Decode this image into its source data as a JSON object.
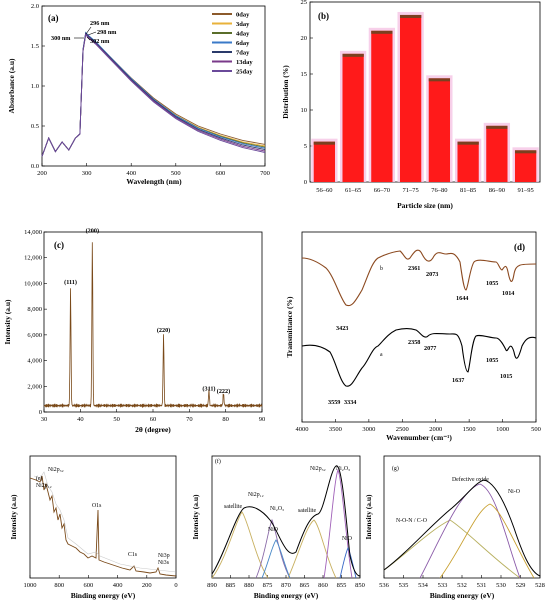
{
  "chart_data": [
    {
      "panel": "(a)",
      "type": "line",
      "xlabel": "Wavelength (nm)",
      "ylabel": "Absorbance (a.u)",
      "xlim": [
        200,
        700
      ],
      "ylim": [
        0,
        2.0
      ],
      "xticks": [
        200,
        300,
        400,
        500,
        600,
        700
      ],
      "yticks": [
        "0.0",
        "0.5",
        "1.0",
        "1.5",
        "2.0"
      ],
      "annotations": [
        "300 nm",
        "296 nm",
        "298 nm",
        "302 nm"
      ],
      "annotation_x": [
        300,
        296,
        298,
        302
      ],
      "legend": "top-right",
      "series": [
        {
          "name": "0day",
          "color": "#8c5a2b",
          "peak": 1.66
        },
        {
          "name": "3day",
          "color": "#e8b23a",
          "peak": 1.64
        },
        {
          "name": "4day",
          "color": "#5a6e2a",
          "peak": 1.65
        },
        {
          "name": "6day",
          "color": "#3a7ac8",
          "peak": 1.67
        },
        {
          "name": "7day",
          "color": "#2a3a6a",
          "peak": 1.66
        },
        {
          "name": "13day",
          "color": "#7a3a8a",
          "peak": 1.65
        },
        {
          "name": "25day",
          "color": "#6a4a9a",
          "peak": 1.64
        }
      ],
      "x": [
        200,
        215,
        230,
        245,
        260,
        275,
        285,
        292,
        298,
        305,
        320,
        350,
        400,
        450,
        500,
        550,
        600,
        650,
        700
      ],
      "y": [
        0.12,
        0.35,
        0.18,
        0.3,
        0.2,
        0.35,
        0.4,
        1.45,
        1.66,
        1.62,
        1.55,
        1.38,
        1.1,
        0.85,
        0.65,
        0.5,
        0.4,
        0.32,
        0.27
      ]
    },
    {
      "panel": "(b)",
      "type": "bar",
      "xlabel": "Particle size (nm)",
      "ylabel": "Distribution (%)",
      "categories": [
        "56–60",
        "61–65",
        "66–70",
        "71–75",
        "76–80",
        "81–85",
        "86–90",
        "91–95"
      ],
      "values": [
        5.6,
        17.8,
        21.0,
        23.2,
        14.4,
        5.6,
        7.8,
        4.4
      ],
      "ylim": [
        0,
        25
      ],
      "yticks": [
        0,
        5,
        10,
        15,
        20,
        25
      ],
      "bar_color": "#ff1a1a",
      "bar_cap_color": "#7a4020",
      "halo_color": "#f6c8e6"
    },
    {
      "panel": "(c)",
      "type": "line",
      "xlabel": "2θ (degree)",
      "ylabel": "Intensity (a.u)",
      "xlim": [
        30,
        90
      ],
      "ylim": [
        0,
        14000
      ],
      "xticks": [
        30,
        40,
        50,
        60,
        70,
        80,
        90
      ],
      "yticks": [
        "0",
        "2,000",
        "4,000",
        "6,000",
        "8,000",
        "10,000",
        "12,000",
        "14,000"
      ],
      "line_color": "#7a4a1a",
      "peaks": [
        {
          "label": "(111)",
          "x": 37.3,
          "y": 9000
        },
        {
          "label": "(200)",
          "x": 43.3,
          "y": 12800
        },
        {
          "label": "(220)",
          "x": 62.9,
          "y": 5500
        },
        {
          "label": "(311)",
          "x": 75.4,
          "y": 1200
        },
        {
          "label": "(222)",
          "x": 79.4,
          "y": 1000
        }
      ],
      "baseline": 500
    },
    {
      "panel": "(d)",
      "type": "line",
      "xlabel": "Wavenumber (cm⁻¹)",
      "ylabel": "Transmittance (%)",
      "xlim": [
        4000,
        500
      ],
      "xticks": [
        4000,
        3500,
        3000,
        2500,
        2000,
        1500,
        1000,
        500
      ],
      "series": [
        {
          "name": "b",
          "color": "#8c4a20",
          "labels": [
            "3423",
            "2361",
            "2073",
            "1644",
            "1055",
            "1014"
          ]
        },
        {
          "name": "a",
          "color": "#000000",
          "labels": [
            "3559",
            "3334",
            "2358",
            "2077",
            "1637",
            "1055",
            "1015"
          ]
        }
      ]
    },
    {
      "panel": "(e)",
      "type": "line",
      "xlabel": "Binding energy (eV)",
      "ylabel": "Intensity (a.u)",
      "xlim": [
        1000,
        0
      ],
      "xticks": [
        "1000",
        "800",
        "600",
        "400",
        "200",
        "0"
      ],
      "line_color": "#7a4a1a",
      "labels": [
        "Ni2p₁₂",
        "Ni2p₃₂",
        "O1s",
        "C1s",
        "Ni3p",
        "Ni3s"
      ]
    },
    {
      "panel": "(f)",
      "type": "line",
      "xlabel": "Binding energy (eV)",
      "ylabel": "Intensity (a.u)",
      "xlim": [
        890,
        850
      ],
      "xticks": [
        "890",
        "885",
        "880",
        "875",
        "870",
        "865",
        "860",
        "855",
        "850"
      ],
      "labels": [
        "satellite",
        "Ni2p₁₂",
        "Ni₂O₃",
        "NiO",
        "satellite",
        "Ni2p₃₂",
        "Ni₂O₃",
        "NiO"
      ]
    },
    {
      "panel": "(g)",
      "type": "line",
      "xlabel": "Binding energy (eV)",
      "ylabel": "Intensity (a.u)",
      "xlim": [
        536,
        528
      ],
      "xticks": [
        "536",
        "535",
        "534",
        "533",
        "532",
        "531",
        "530",
        "529",
        "528"
      ],
      "labels": [
        "Defective oxide",
        "Ni-O",
        "N-O-N / C-O"
      ]
    }
  ]
}
